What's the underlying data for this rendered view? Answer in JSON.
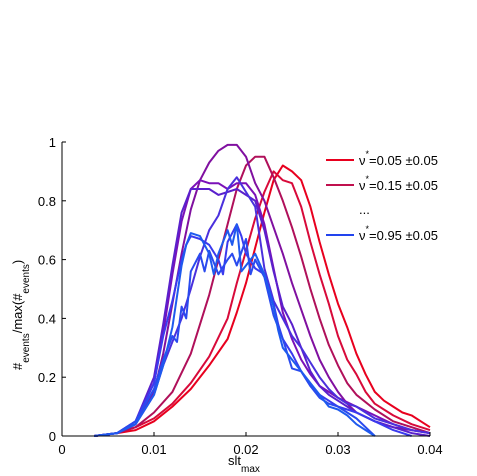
{
  "chart_data": {
    "type": "line",
    "xlabel": "slt",
    "xlabel_sub": "max",
    "ylabel": {
      "a": "#",
      "a_sub": "events",
      "b": "/max(#",
      "b_sub": "events",
      "c": ")"
    },
    "xlim": [
      0,
      0.04
    ],
    "ylim": [
      0,
      1
    ],
    "xticks": [
      {
        "value": 0,
        "label": "0"
      },
      {
        "value": 0.01,
        "label": "0.01"
      },
      {
        "value": 0.02,
        "label": "0.02"
      },
      {
        "value": 0.03,
        "label": "0.03"
      },
      {
        "value": 0.04,
        "label": "0.04"
      }
    ],
    "yticks": [
      {
        "value": 0,
        "label": "0"
      },
      {
        "value": 0.2,
        "label": "0.2"
      },
      {
        "value": 0.4,
        "label": "0.4"
      },
      {
        "value": 0.6,
        "label": "0.6"
      },
      {
        "value": 0.8,
        "label": "0.8"
      },
      {
        "value": 1,
        "label": "1"
      }
    ],
    "grid": false,
    "legend_position": "top-right",
    "legend": [
      {
        "symbol": "ν",
        "sup": "*",
        "text": "=0.05 ±0.05",
        "color": "#e8001e"
      },
      {
        "symbol": "ν",
        "sup": "*",
        "text": "=0.15 ±0.05",
        "color": "#c0104e"
      },
      {
        "ellipsis": "..."
      },
      {
        "symbol": "ν",
        "sup": "*",
        "text": "=0.95 ±0.05",
        "color": "#2244ee"
      }
    ],
    "series": [
      {
        "color": "#e8001e",
        "x": [
          0.0035,
          0.006,
          0.008,
          0.01,
          0.012,
          0.014,
          0.016,
          0.018,
          0.019,
          0.02,
          0.021,
          0.022,
          0.023,
          0.024,
          0.025,
          0.026,
          0.027,
          0.028,
          0.029,
          0.03,
          0.031,
          0.032,
          0.033,
          0.034,
          0.035,
          0.036,
          0.037,
          0.038,
          0.039,
          0.04
        ],
        "y": [
          0.0,
          0.01,
          0.02,
          0.05,
          0.1,
          0.16,
          0.24,
          0.33,
          0.42,
          0.52,
          0.64,
          0.76,
          0.87,
          0.92,
          0.9,
          0.87,
          0.78,
          0.66,
          0.55,
          0.45,
          0.37,
          0.28,
          0.21,
          0.15,
          0.12,
          0.1,
          0.08,
          0.07,
          0.05,
          0.03
        ]
      },
      {
        "color": "#d80a3a",
        "x": [
          0.0035,
          0.006,
          0.008,
          0.01,
          0.012,
          0.014,
          0.016,
          0.018,
          0.019,
          0.02,
          0.021,
          0.022,
          0.023,
          0.024,
          0.025,
          0.026,
          0.027,
          0.028,
          0.029,
          0.03,
          0.031,
          0.032,
          0.033,
          0.034,
          0.036,
          0.038,
          0.04
        ],
        "y": [
          0.0,
          0.01,
          0.03,
          0.06,
          0.11,
          0.18,
          0.27,
          0.4,
          0.52,
          0.63,
          0.74,
          0.83,
          0.9,
          0.87,
          0.86,
          0.78,
          0.66,
          0.55,
          0.45,
          0.34,
          0.26,
          0.21,
          0.15,
          0.11,
          0.07,
          0.04,
          0.02
        ]
      },
      {
        "color": "#b0105a",
        "x": [
          0.0035,
          0.006,
          0.008,
          0.01,
          0.012,
          0.014,
          0.016,
          0.017,
          0.018,
          0.019,
          0.02,
          0.021,
          0.022,
          0.023,
          0.024,
          0.025,
          0.026,
          0.027,
          0.028,
          0.029,
          0.03,
          0.031,
          0.032,
          0.034,
          0.036,
          0.038,
          0.04
        ],
        "y": [
          0.0,
          0.01,
          0.03,
          0.08,
          0.15,
          0.28,
          0.48,
          0.6,
          0.72,
          0.84,
          0.92,
          0.95,
          0.95,
          0.88,
          0.8,
          0.71,
          0.61,
          0.5,
          0.4,
          0.31,
          0.24,
          0.18,
          0.14,
          0.09,
          0.05,
          0.03,
          0.01
        ]
      },
      {
        "color": "#8010a0",
        "x": [
          0.0035,
          0.006,
          0.008,
          0.01,
          0.011,
          0.012,
          0.013,
          0.014,
          0.015,
          0.016,
          0.017,
          0.018,
          0.019,
          0.02,
          0.021,
          0.022,
          0.023,
          0.024,
          0.025,
          0.026,
          0.027,
          0.028,
          0.029,
          0.03,
          0.031,
          0.032,
          0.034,
          0.036,
          0.038,
          0.04
        ],
        "y": [
          0.0,
          0.01,
          0.04,
          0.15,
          0.28,
          0.45,
          0.62,
          0.77,
          0.87,
          0.93,
          0.97,
          0.99,
          0.99,
          0.95,
          0.86,
          0.8,
          0.71,
          0.62,
          0.52,
          0.43,
          0.34,
          0.26,
          0.2,
          0.15,
          0.11,
          0.08,
          0.05,
          0.03,
          0.02,
          0.01
        ]
      },
      {
        "color": "#7a10b8",
        "x": [
          0.0035,
          0.006,
          0.008,
          0.01,
          0.011,
          0.012,
          0.013,
          0.014,
          0.015,
          0.016,
          0.017,
          0.018,
          0.019,
          0.02,
          0.021,
          0.022,
          0.023,
          0.024,
          0.025,
          0.026,
          0.027,
          0.028,
          0.029,
          0.03,
          0.032,
          0.034,
          0.036,
          0.038,
          0.04
        ],
        "y": [
          0.0,
          0.01,
          0.05,
          0.18,
          0.35,
          0.55,
          0.73,
          0.84,
          0.87,
          0.86,
          0.86,
          0.84,
          0.86,
          0.86,
          0.82,
          0.72,
          0.57,
          0.42,
          0.33,
          0.26,
          0.21,
          0.17,
          0.15,
          0.13,
          0.1,
          0.07,
          0.04,
          0.02,
          0.01
        ]
      },
      {
        "color": "#5a20cc",
        "x": [
          0.0035,
          0.006,
          0.008,
          0.01,
          0.011,
          0.012,
          0.013,
          0.014,
          0.015,
          0.016,
          0.017,
          0.018,
          0.019,
          0.02,
          0.021,
          0.022,
          0.023,
          0.024,
          0.025,
          0.026,
          0.027,
          0.028,
          0.029,
          0.03,
          0.032,
          0.034,
          0.036,
          0.038,
          0.04
        ],
        "y": [
          0.0,
          0.01,
          0.05,
          0.2,
          0.38,
          0.58,
          0.76,
          0.84,
          0.84,
          0.84,
          0.82,
          0.83,
          0.84,
          0.82,
          0.8,
          0.7,
          0.56,
          0.44,
          0.38,
          0.3,
          0.22,
          0.17,
          0.14,
          0.12,
          0.08,
          0.05,
          0.03,
          0.01,
          0.0
        ]
      },
      {
        "color": "#4a30dd",
        "x": [
          0.0035,
          0.006,
          0.008,
          0.01,
          0.011,
          0.012,
          0.013,
          0.014,
          0.015,
          0.016,
          0.017,
          0.018,
          0.019,
          0.02,
          0.021,
          0.022,
          0.023,
          0.024,
          0.025,
          0.026,
          0.027,
          0.028,
          0.029,
          0.03,
          0.031,
          0.032,
          0.033,
          0.034,
          0.036,
          0.038,
          0.04
        ],
        "y": [
          0.0,
          0.01,
          0.04,
          0.14,
          0.24,
          0.32,
          0.4,
          0.5,
          0.61,
          0.7,
          0.75,
          0.84,
          0.88,
          0.83,
          0.78,
          0.57,
          0.46,
          0.4,
          0.34,
          0.3,
          0.25,
          0.2,
          0.16,
          0.13,
          0.11,
          0.1,
          0.08,
          0.06,
          0.04,
          0.02,
          0.01
        ]
      },
      {
        "color": "#3a3aee",
        "x": [
          0.0035,
          0.006,
          0.008,
          0.01,
          0.011,
          0.012,
          0.013,
          0.0135,
          0.014,
          0.015,
          0.016,
          0.017,
          0.0175,
          0.018,
          0.019,
          0.0195,
          0.02,
          0.021,
          0.022,
          0.023,
          0.0235,
          0.024,
          0.025,
          0.026,
          0.027,
          0.028,
          0.029,
          0.03,
          0.031,
          0.032,
          0.034,
          0.036,
          0.038
        ],
        "y": [
          0.0,
          0.01,
          0.05,
          0.18,
          0.34,
          0.46,
          0.6,
          0.65,
          0.68,
          0.67,
          0.65,
          0.6,
          0.55,
          0.66,
          0.72,
          0.68,
          0.62,
          0.57,
          0.55,
          0.45,
          0.38,
          0.33,
          0.28,
          0.22,
          0.17,
          0.14,
          0.12,
          0.1,
          0.09,
          0.08,
          0.05,
          0.02,
          0.0
        ]
      },
      {
        "color": "#2a4aee",
        "x": [
          0.0035,
          0.006,
          0.008,
          0.01,
          0.011,
          0.012,
          0.0125,
          0.013,
          0.0135,
          0.014,
          0.015,
          0.0155,
          0.016,
          0.017,
          0.018,
          0.0185,
          0.019,
          0.02,
          0.0205,
          0.021,
          0.022,
          0.023,
          0.024,
          0.025,
          0.026,
          0.027,
          0.028,
          0.029,
          0.03,
          0.031,
          0.032,
          0.033,
          0.034
        ],
        "y": [
          0.0,
          0.01,
          0.05,
          0.16,
          0.26,
          0.34,
          0.32,
          0.44,
          0.4,
          0.56,
          0.62,
          0.56,
          0.63,
          0.55,
          0.6,
          0.62,
          0.58,
          0.67,
          0.55,
          0.6,
          0.54,
          0.41,
          0.33,
          0.23,
          0.22,
          0.17,
          0.13,
          0.11,
          0.1,
          0.08,
          0.06,
          0.03,
          0.0
        ]
      },
      {
        "color": "#1e5aee",
        "x": [
          0.0035,
          0.006,
          0.008,
          0.01,
          0.011,
          0.012,
          0.013,
          0.0135,
          0.014,
          0.015,
          0.016,
          0.0165,
          0.017,
          0.018,
          0.0185,
          0.019,
          0.0195,
          0.02,
          0.021,
          0.022,
          0.023,
          0.0235,
          0.024,
          0.025,
          0.026,
          0.027,
          0.028,
          0.029,
          0.03,
          0.031,
          0.032,
          0.033,
          0.034
        ],
        "y": [
          0.0,
          0.01,
          0.04,
          0.14,
          0.24,
          0.37,
          0.58,
          0.65,
          0.69,
          0.68,
          0.62,
          0.55,
          0.62,
          0.7,
          0.65,
          0.72,
          0.56,
          0.58,
          0.62,
          0.55,
          0.44,
          0.36,
          0.3,
          0.26,
          0.22,
          0.18,
          0.14,
          0.1,
          0.09,
          0.07,
          0.04,
          0.02,
          0.0
        ]
      }
    ]
  }
}
